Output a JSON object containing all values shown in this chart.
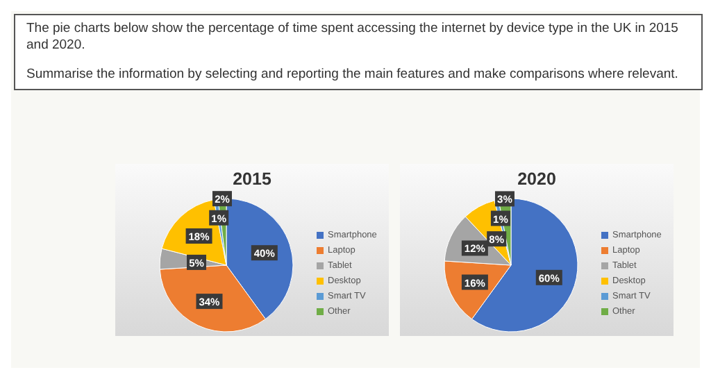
{
  "chart_data": [
    {
      "type": "other",
      "annotations": [
        "The pie charts below show the percentage of time spent accessing the internet by device type in the UK in 2015 and 2020.",
        "Summarise the information by selecting and reporting the main features and make comparisons where relevant."
      ]
    },
    {
      "type": "pie",
      "title": "2015",
      "categories": [
        "Smartphone",
        "Laptop",
        "Tablet",
        "Desktop",
        "Smart TV",
        "Other"
      ],
      "values": [
        40,
        34,
        5,
        18,
        1,
        2
      ],
      "value_labels": [
        "40%",
        "34%",
        "5%",
        "18%",
        "1%",
        "2%"
      ],
      "colors": [
        "#4472c4",
        "#ed7d31",
        "#a5a5a5",
        "#ffc000",
        "#5b9bd5",
        "#70ad47"
      ],
      "legend": "right"
    },
    {
      "type": "pie",
      "title": "2020",
      "categories": [
        "Smartphone",
        "Laptop",
        "Tablet",
        "Desktop",
        "Smart TV",
        "Other"
      ],
      "values": [
        60,
        16,
        12,
        8,
        1,
        3
      ],
      "value_labels": [
        "60%",
        "16%",
        "12%",
        "8%",
        "1%",
        "3%"
      ],
      "colors": [
        "#4472c4",
        "#ed7d31",
        "#a5a5a5",
        "#ffc000",
        "#5b9bd5",
        "#70ad47"
      ],
      "legend": "right"
    }
  ]
}
